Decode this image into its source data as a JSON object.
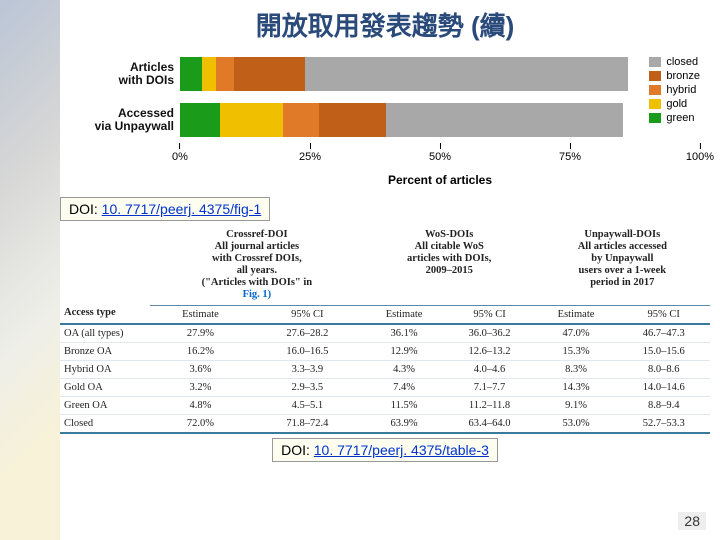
{
  "title": "開放取用發表趨勢 (續)",
  "slide_number": 28,
  "doi1": {
    "prefix": "DOI: ",
    "link": "10. 7717/peerj. 4375/fig-1"
  },
  "doi2": {
    "prefix": "DOI: ",
    "link": "10. 7717/peerj. 4375/table-3"
  },
  "chart": {
    "type": "stacked-bar-horizontal",
    "x_label": "Percent of articles",
    "x_ticks": [
      "0%",
      "25%",
      "50%",
      "75%",
      "100%"
    ],
    "bars": [
      {
        "label_l1": "Articles",
        "label_l2": "with DOIs",
        "segments": [
          {
            "name": "green",
            "pct": 5,
            "color": "#1a9b1a"
          },
          {
            "name": "gold",
            "pct": 3,
            "color": "#f0c000"
          },
          {
            "name": "hybrid",
            "pct": 4,
            "color": "#e07a28"
          },
          {
            "name": "bronze",
            "pct": 16,
            "color": "#c06018"
          },
          {
            "name": "closed",
            "pct": 72,
            "color": "#a8a8a8"
          }
        ]
      },
      {
        "label_l1": "Accessed",
        "label_l2": "via Unpaywall",
        "segments": [
          {
            "name": "green",
            "pct": 9,
            "color": "#1a9b1a"
          },
          {
            "name": "gold",
            "pct": 14,
            "color": "#f0c000"
          },
          {
            "name": "hybrid",
            "pct": 8,
            "color": "#e07a28"
          },
          {
            "name": "bronze",
            "pct": 15,
            "color": "#c06018"
          },
          {
            "name": "closed",
            "pct": 53,
            "color": "#a8a8a8"
          }
        ]
      }
    ],
    "legend": [
      {
        "name": "closed",
        "color": "#a8a8a8"
      },
      {
        "name": "bronze",
        "color": "#c06018"
      },
      {
        "name": "hybrid",
        "color": "#e07a28"
      },
      {
        "name": "gold",
        "color": "#f0c000"
      },
      {
        "name": "green",
        "color": "#1a9b1a"
      }
    ],
    "background": "#ffffff"
  },
  "table": {
    "col_access_header": "Access type",
    "groups": [
      {
        "title_lines": [
          "Crossref-DOI",
          "All journal articles",
          "with Crossref DOIs,",
          "all years.",
          "(\"Articles with DOIs\" in",
          "Fig. 1)"
        ]
      },
      {
        "title_lines": [
          "WoS-DOIs",
          "All citable WoS",
          "articles with DOIs,",
          "2009–2015"
        ]
      },
      {
        "title_lines": [
          "Unpaywall-DOIs",
          "All articles accessed",
          "by Unpaywall",
          "users over a 1-week",
          "period in 2017"
        ]
      }
    ],
    "sub_headers": [
      "Estimate",
      "95% CI"
    ],
    "rows": [
      {
        "access": "OA (all types)",
        "vals": [
          "27.9%",
          "27.6–28.2",
          "36.1%",
          "36.0–36.2",
          "47.0%",
          "46.7–47.3"
        ]
      },
      {
        "access": "Bronze OA",
        "vals": [
          "16.2%",
          "16.0–16.5",
          "12.9%",
          "12.6–13.2",
          "15.3%",
          "15.0–15.6"
        ]
      },
      {
        "access": "Hybrid OA",
        "vals": [
          "3.6%",
          "3.3–3.9",
          "4.3%",
          "4.0–4.6",
          "8.3%",
          "8.0–8.6"
        ]
      },
      {
        "access": "Gold OA",
        "vals": [
          "3.2%",
          "2.9–3.5",
          "7.4%",
          "7.1–7.7",
          "14.3%",
          "14.0–14.6"
        ]
      },
      {
        "access": "Green OA",
        "vals": [
          "4.8%",
          "4.5–5.1",
          "11.5%",
          "11.2–11.8",
          "9.1%",
          "8.8–9.4"
        ]
      },
      {
        "access": "Closed",
        "vals": [
          "72.0%",
          "71.8–72.4",
          "63.9%",
          "63.4–64.0",
          "53.0%",
          "52.7–53.3"
        ]
      }
    ]
  }
}
